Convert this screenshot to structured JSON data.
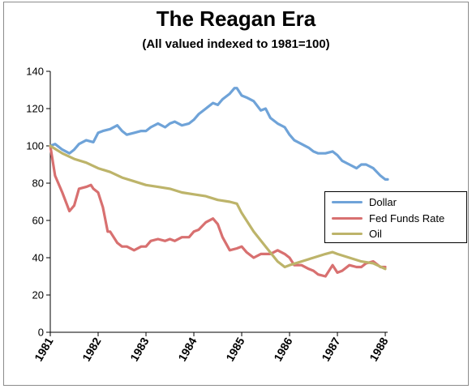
{
  "chart_data": {
    "type": "line",
    "title": "The Reagan Era",
    "subtitle": "(All valued indexed to 1981=100)",
    "xlabel": "",
    "ylabel": "",
    "xlim": [
      1981,
      1988.05
    ],
    "ylim": [
      0,
      140
    ],
    "yticks": [
      0,
      20,
      40,
      60,
      80,
      100,
      120,
      140
    ],
    "xticks": [
      "1981",
      "1982",
      "1983",
      "1984",
      "1985",
      "1986",
      "1987",
      "1988"
    ],
    "grid": false,
    "legend_position": "right",
    "series": [
      {
        "name": "Dollar",
        "color": "#6fa3d8",
        "x": [
          1981.0,
          1981.1,
          1981.25,
          1981.4,
          1981.5,
          1981.6,
          1981.75,
          1981.9,
          1982.0,
          1982.1,
          1982.25,
          1982.4,
          1982.5,
          1982.6,
          1982.75,
          1982.9,
          1983.0,
          1983.1,
          1983.25,
          1983.4,
          1983.5,
          1983.6,
          1983.75,
          1983.9,
          1984.0,
          1984.1,
          1984.25,
          1984.4,
          1984.5,
          1984.6,
          1984.75,
          1984.85,
          1984.9,
          1985.0,
          1985.1,
          1985.25,
          1985.4,
          1985.5,
          1985.6,
          1985.75,
          1985.9,
          1986.0,
          1986.1,
          1986.25,
          1986.4,
          1986.5,
          1986.6,
          1986.75,
          1986.9,
          1987.0,
          1987.1,
          1987.25,
          1987.4,
          1987.5,
          1987.6,
          1987.75,
          1987.9,
          1988.0,
          1988.05
        ],
        "values": [
          100,
          101,
          98,
          96,
          98,
          101,
          103,
          102,
          107,
          108,
          109,
          111,
          108,
          106,
          107,
          108,
          108,
          110,
          112,
          110,
          112,
          113,
          111,
          112,
          114,
          117,
          120,
          123,
          122,
          125,
          128,
          131,
          131,
          127,
          126,
          124,
          119,
          120,
          115,
          112,
          110,
          106,
          103,
          101,
          99,
          97,
          96,
          96,
          97,
          95,
          92,
          90,
          88,
          90,
          90,
          88,
          84,
          82,
          82
        ]
      },
      {
        "name": "Fed Funds Rate",
        "color": "#d87070",
        "x": [
          1981.0,
          1981.1,
          1981.25,
          1981.4,
          1981.5,
          1981.6,
          1981.75,
          1981.85,
          1981.9,
          1982.0,
          1982.1,
          1982.2,
          1982.25,
          1982.4,
          1982.5,
          1982.6,
          1982.75,
          1982.9,
          1983.0,
          1983.1,
          1983.25,
          1983.4,
          1983.5,
          1983.6,
          1983.75,
          1983.9,
          1984.0,
          1984.1,
          1984.25,
          1984.4,
          1984.5,
          1984.6,
          1984.75,
          1984.9,
          1985.0,
          1985.1,
          1985.25,
          1985.4,
          1985.5,
          1985.6,
          1985.75,
          1985.9,
          1986.0,
          1986.1,
          1986.25,
          1986.4,
          1986.5,
          1986.6,
          1986.75,
          1986.9,
          1987.0,
          1987.1,
          1987.25,
          1987.4,
          1987.5,
          1987.6,
          1987.75,
          1987.9,
          1988.0
        ],
        "values": [
          100,
          84,
          75,
          65,
          68,
          77,
          78,
          79,
          77,
          75,
          67,
          54,
          54,
          48,
          46,
          46,
          44,
          46,
          46,
          49,
          50,
          49,
          50,
          49,
          51,
          51,
          54,
          55,
          59,
          61,
          58,
          51,
          44,
          45,
          46,
          43,
          40,
          42,
          42,
          42,
          44,
          42,
          40,
          36,
          36,
          34,
          33,
          31,
          30,
          36,
          32,
          33,
          36,
          35,
          35,
          37,
          38,
          35,
          35
        ]
      },
      {
        "name": "Oil",
        "color": "#bdb46a",
        "x": [
          1981.0,
          1981.25,
          1981.5,
          1981.75,
          1982.0,
          1982.25,
          1982.5,
          1982.75,
          1983.0,
          1983.25,
          1983.5,
          1983.75,
          1984.0,
          1984.25,
          1984.5,
          1984.75,
          1984.9,
          1985.0,
          1985.25,
          1985.5,
          1985.75,
          1985.9,
          1986.0,
          1986.25,
          1986.5,
          1986.75,
          1986.9,
          1987.0,
          1987.25,
          1987.5,
          1987.75,
          1988.0
        ],
        "values": [
          100,
          96,
          93,
          91,
          88,
          86,
          83,
          81,
          79,
          78,
          77,
          75,
          74,
          73,
          71,
          70,
          69,
          64,
          54,
          46,
          38,
          35,
          36,
          38,
          40,
          42,
          43,
          42,
          40,
          38,
          37,
          34
        ]
      }
    ]
  }
}
